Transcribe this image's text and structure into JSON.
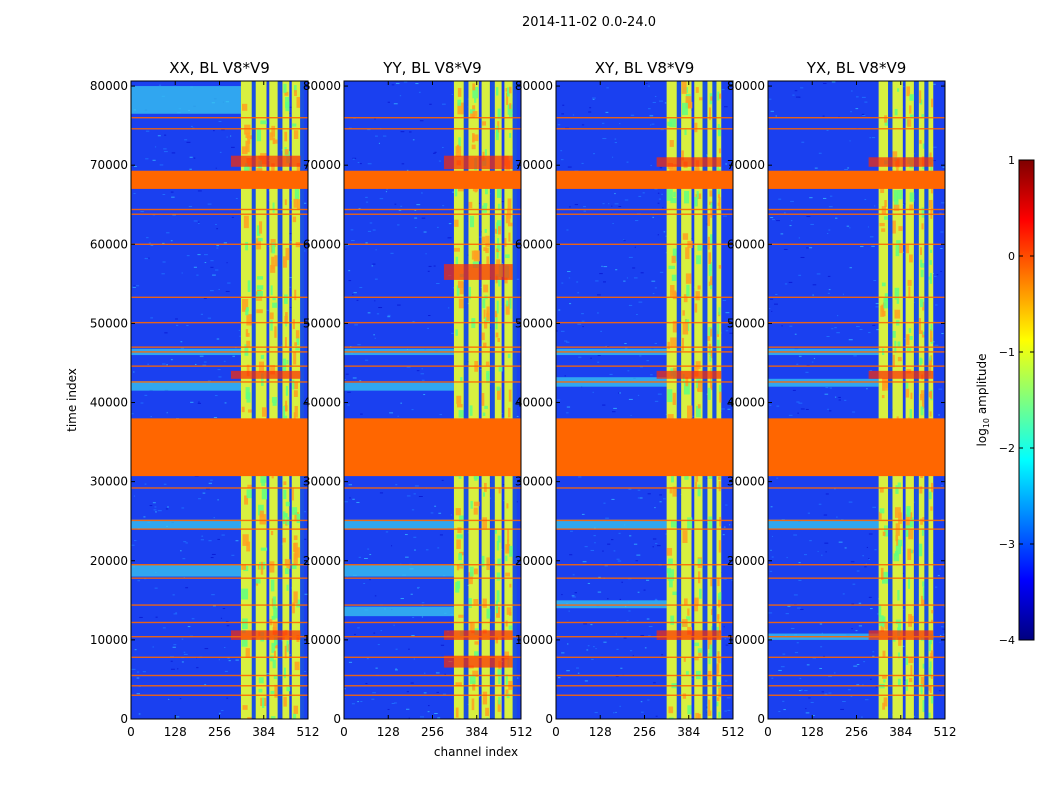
{
  "figure": {
    "title": "2014-11-02 0.0-24.0"
  },
  "chart_data": {
    "type": "heatmap",
    "suptitle": "2014-11-02 0.0-24.0",
    "xlabel": "channel index",
    "ylabel": "time index",
    "xlim": [
      0,
      512
    ],
    "ylim": [
      0,
      80640
    ],
    "xticks": [
      0,
      128,
      256,
      384,
      512
    ],
    "yticks": [
      0,
      10000,
      20000,
      30000,
      40000,
      50000,
      60000,
      70000,
      80000
    ],
    "colorbar": {
      "label": "log10 amplitude",
      "label_main": "log",
      "label_sub": "10",
      "label_rest": " amplitude",
      "range": [
        -4,
        1
      ],
      "ticks": [
        1,
        0,
        -1,
        -2,
        -3,
        -4
      ],
      "tick_labels": [
        "1",
        "0",
        "−1",
        "−2",
        "−3",
        "−4"
      ],
      "colormap": [
        "#00007f",
        "#0000ff",
        "#007fff",
        "#00ffff",
        "#7fff7f",
        "#ffff00",
        "#ff7f00",
        "#ff0000",
        "#7f0000"
      ]
    },
    "flag_color": "#ff6600",
    "background_color": "#1a40f0",
    "flagged_time_ranges": [
      [
        67000,
        69300
      ],
      [
        30700,
        38000
      ]
    ],
    "flagged_lines": [
      3000,
      4200,
      5500,
      7800,
      10400,
      12200,
      14400,
      17800,
      19500,
      24000,
      25100,
      29200,
      42600,
      44600,
      46400,
      47000,
      50100,
      53300,
      60000,
      63800,
      64400,
      74600,
      76000
    ],
    "panels": [
      {
        "title": "XX, BL V8*V9",
        "bright_bands": [
          [
            318,
            352
          ],
          [
            360,
            392
          ],
          [
            400,
            425
          ],
          [
            438,
            458
          ],
          [
            465,
            490
          ]
        ],
        "dark_channels": [
          355,
          430,
          495
        ],
        "cyan_time_bands": [
          [
            41500,
            42700
          ],
          [
            46000,
            46800
          ],
          [
            24000,
            25200
          ],
          [
            18000,
            19500
          ],
          [
            76500,
            80000
          ]
        ],
        "hot_time_bands": [
          [
            10000,
            11200
          ],
          [
            43000,
            44000
          ],
          [
            69800,
            71200
          ]
        ]
      },
      {
        "title": "YY, BL V8*V9",
        "bright_bands": [
          [
            318,
            350
          ],
          [
            360,
            390
          ],
          [
            398,
            422
          ],
          [
            436,
            456
          ],
          [
            464,
            488
          ]
        ],
        "dark_channels": [
          352,
          430,
          494
        ],
        "cyan_time_bands": [
          [
            41500,
            42500
          ],
          [
            46000,
            46800
          ],
          [
            24000,
            25200
          ],
          [
            18000,
            19500
          ],
          [
            13000,
            14200
          ]
        ],
        "hot_time_bands": [
          [
            6500,
            8000
          ],
          [
            10000,
            11200
          ],
          [
            55500,
            57500
          ],
          [
            69500,
            71200
          ]
        ]
      },
      {
        "title": "XY, BL V8*V9",
        "bright_bands": [
          [
            320,
            352
          ],
          [
            362,
            392
          ],
          [
            400,
            424
          ],
          [
            438,
            456
          ],
          [
            464,
            478
          ]
        ],
        "dark_channels": [
          355,
          430,
          458
        ],
        "cyan_time_bands": [
          [
            42000,
            43200
          ],
          [
            46000,
            46800
          ],
          [
            24000,
            25200
          ],
          [
            14000,
            15000
          ]
        ],
        "hot_time_bands": [
          [
            10000,
            11200
          ],
          [
            43000,
            44000
          ],
          [
            69800,
            71000
          ]
        ]
      },
      {
        "title": "YX, BL V8*V9",
        "bright_bands": [
          [
            320,
            350
          ],
          [
            360,
            390
          ],
          [
            398,
            422
          ],
          [
            436,
            456
          ],
          [
            464,
            478
          ]
        ],
        "dark_channels": [
          353,
          430,
          458
        ],
        "cyan_time_bands": [
          [
            42000,
            43000
          ],
          [
            46000,
            46800
          ],
          [
            24000,
            25200
          ],
          [
            10000,
            10800
          ]
        ],
        "hot_time_bands": [
          [
            10000,
            11200
          ],
          [
            43000,
            44000
          ],
          [
            69800,
            71000
          ]
        ]
      }
    ]
  }
}
